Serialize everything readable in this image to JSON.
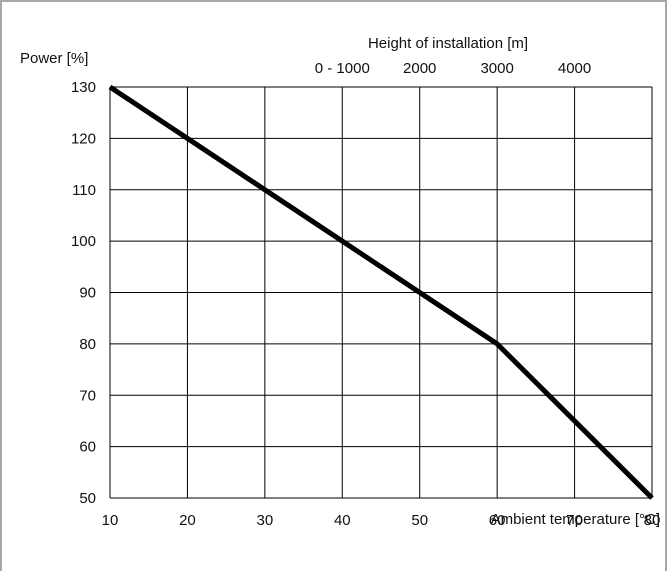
{
  "chart_data": {
    "type": "line",
    "ylabel": "Power [%]",
    "xlabel": "Ambient temperature [°C]",
    "top_axis": {
      "label": "Height of installation [m]",
      "ticks": [
        {
          "at": 40,
          "label": "0 - 1000"
        },
        {
          "at": 50,
          "label": "2000"
        },
        {
          "at": 60,
          "label": "3000"
        },
        {
          "at": 70,
          "label": "4000"
        }
      ]
    },
    "xlim": [
      10,
      80
    ],
    "ylim": [
      50,
      130
    ],
    "xticks": [
      10,
      20,
      30,
      40,
      50,
      60,
      70,
      80
    ],
    "yticks": [
      50,
      60,
      70,
      80,
      90,
      100,
      110,
      120,
      130
    ],
    "grid": true,
    "series": [
      {
        "x": [
          10,
          20,
          30,
          40,
          50,
          60,
          70,
          80
        ],
        "y": [
          130,
          120,
          110,
          100,
          90,
          80,
          65,
          50
        ],
        "color": "#000000"
      }
    ]
  }
}
